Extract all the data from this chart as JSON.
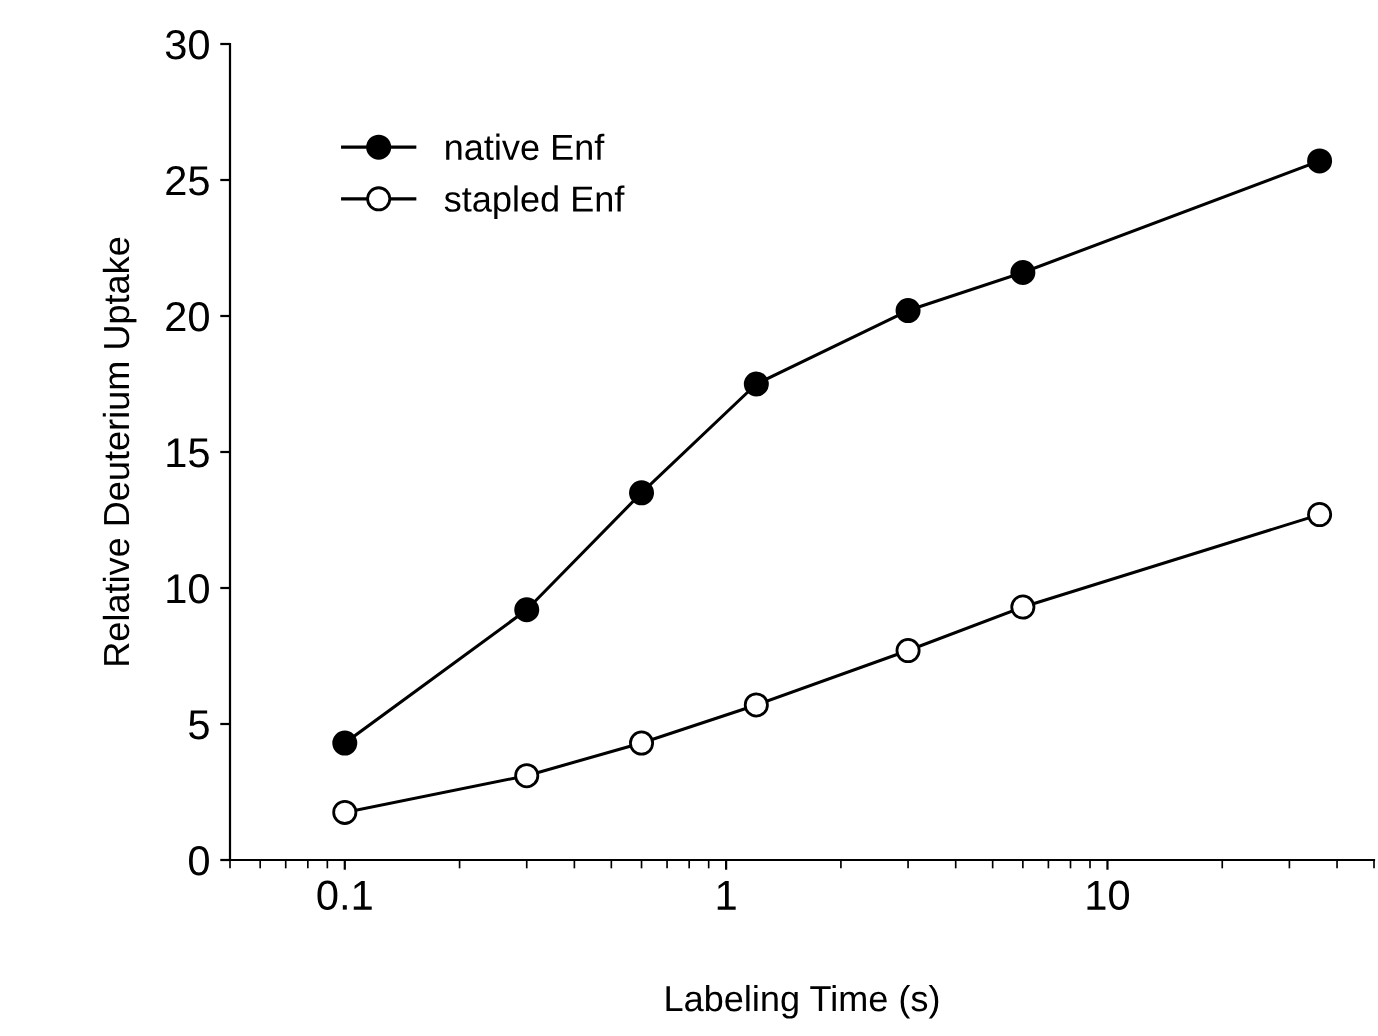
{
  "chart_data": {
    "type": "line",
    "xlabel": "Labeling Time (s)",
    "ylabel": "Relative Deuterium Uptake",
    "x": [
      0.1,
      0.3,
      0.6,
      1.2,
      3,
      6,
      36
    ],
    "series": [
      {
        "name": "native Enf",
        "color": "#000000",
        "values": [
          4.3,
          9.2,
          13.5,
          17.5,
          20.2,
          21.6,
          25.7
        ],
        "marker": "circle"
      },
      {
        "name": "stapled Enf",
        "color": "#000000",
        "values": [
          1.75,
          3.1,
          4.3,
          5.7,
          7.7,
          9.3,
          12.7
        ],
        "marker": "circle"
      }
    ],
    "log": "x",
    "xlim": [
      0.05,
      50
    ],
    "xticks": [
      0.1,
      1,
      10
    ],
    "ylim": [
      0,
      30
    ],
    "yticks": [
      0,
      5,
      10,
      15,
      20,
      25,
      30
    ],
    "grid": false,
    "legend": "top left",
    "line_style": "solid"
  }
}
